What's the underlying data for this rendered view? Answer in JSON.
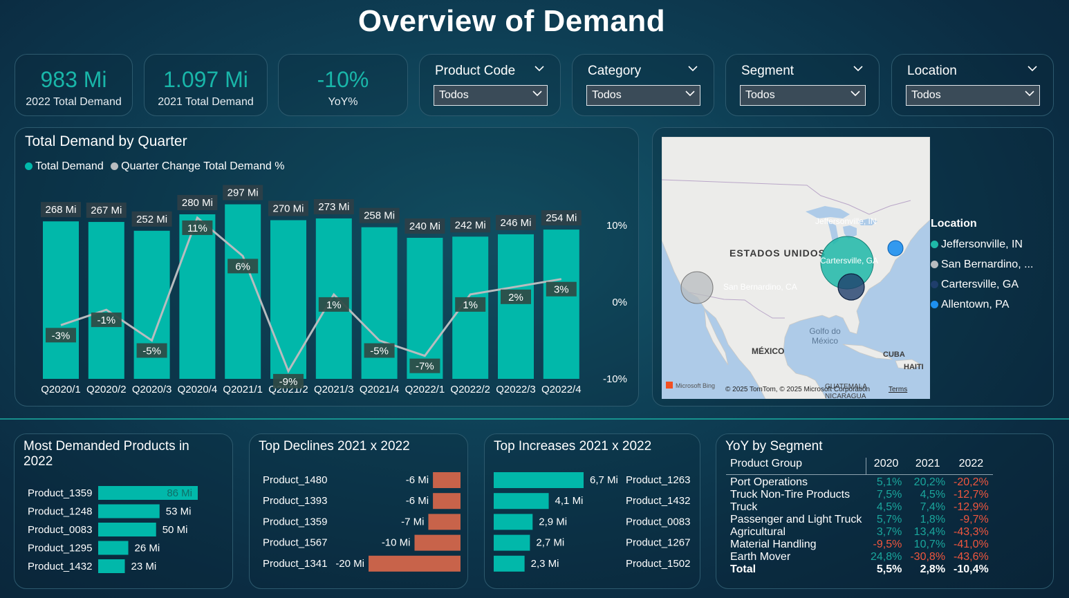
{
  "title": "Overview of Demand",
  "kpis": [
    {
      "value": "983 Mi",
      "label": "2022 Total Demand"
    },
    {
      "value": "1.097 Mi",
      "label": "2021 Total Demand"
    },
    {
      "value": "-10%",
      "label": "YoY%"
    }
  ],
  "slicers": [
    {
      "title": "Product Code",
      "value": "Todos"
    },
    {
      "title": "Category",
      "value": "Todos"
    },
    {
      "title": "Segment",
      "value": "Todos"
    },
    {
      "title": "Location",
      "value": "Todos"
    }
  ],
  "colors": {
    "teal": "#01b8aa",
    "line": "#b8bcbf",
    "decline": "#c8634a",
    "positive": "#1aa79d",
    "negative": "#f0563e"
  },
  "chart_data": [
    {
      "type": "bar",
      "title": "Total Demand by Quarter",
      "legend": [
        "Total Demand",
        "Quarter Change Total Demand %"
      ],
      "categories": [
        "Q2020/1",
        "Q2020/2",
        "Q2020/3",
        "Q2020/4",
        "Q2021/1",
        "Q2021/2",
        "Q2021/3",
        "Q2021/4",
        "Q2022/1",
        "Q2022/2",
        "Q2022/3",
        "Q2022/4"
      ],
      "series": [
        {
          "name": "Total Demand",
          "values": [
            268,
            267,
            252,
            280,
            297,
            270,
            273,
            258,
            240,
            242,
            246,
            254
          ],
          "labels": [
            "268 Mi",
            "267 Mi",
            "252 Mi",
            "280 Mi",
            "297 Mi",
            "270 Mi",
            "273 Mi",
            "258 Mi",
            "240 Mi",
            "242 Mi",
            "246 Mi",
            "254 Mi"
          ]
        },
        {
          "name": "Quarter Change Total Demand %",
          "values": [
            -3,
            -1,
            -5,
            11,
            6,
            -9,
            1,
            -5,
            -7,
            1,
            2,
            3
          ],
          "labels": [
            "-3%",
            "-1%",
            "-5%",
            "11%",
            "6%",
            "-9%",
            "1%",
            "-5%",
            "-7%",
            "1%",
            "2%",
            "3%"
          ]
        }
      ],
      "y2_ticks": [
        "10%",
        "0%",
        "-10%"
      ],
      "y2lim": [
        -10,
        10
      ]
    },
    {
      "type": "bar",
      "title": "Most Demanded Products in 2022",
      "categories": [
        "Product_1359",
        "Product_1248",
        "Product_0083",
        "Product_1295",
        "Product_1432"
      ],
      "values": [
        86,
        53,
        50,
        26,
        23
      ],
      "labels": [
        "86 Mi",
        "53 Mi",
        "50 Mi",
        "26 Mi",
        "23 Mi"
      ]
    },
    {
      "type": "bar",
      "title": "Top Declines 2021 x 2022",
      "categories": [
        "Product_1480",
        "Product_1393",
        "Product_1359",
        "Product_1567",
        "Product_1341"
      ],
      "values": [
        -6,
        -6,
        -7,
        -10,
        -20
      ],
      "labels": [
        "-6 Mi",
        "-6 Mi",
        "-7 Mi",
        "-10 Mi",
        "-20 Mi"
      ]
    },
    {
      "type": "bar",
      "title": "Top Increases 2021 x 2022",
      "categories": [
        "Product_1263",
        "Product_1432",
        "Product_0083",
        "Product_1267",
        "Product_1502"
      ],
      "values": [
        6.7,
        4.1,
        2.9,
        2.7,
        2.3
      ],
      "labels": [
        "6,7 Mi",
        "4,1 Mi",
        "2,9 Mi",
        "2,7 Mi",
        "2,3 Mi"
      ]
    }
  ],
  "map": {
    "labels": {
      "country": "ESTADOS UNIDOS",
      "mexico": "MÉXICO",
      "gulf_1": "Golfo do",
      "gulf_2": "México",
      "cuba": "CUBA",
      "haiti": "HAITI",
      "guatemala": "GUATEMALA",
      "nicaragua": "NICARAGUA"
    },
    "bubble_labels": {
      "jeff": "Jeffersonville, IN",
      "cart": "Cartersville, GA",
      "sanb": "San Bernardino, CA"
    },
    "bing": "Microsoft Bing",
    "copyright": "© 2025 TomTom, © 2025 Microsoft Corporation",
    "terms": "Terms",
    "legend_title": "Location",
    "legend": [
      {
        "name": "Jeffersonville, IN",
        "color": "#1fb9a8"
      },
      {
        "name": "San Bernardino, ...",
        "color": "#b8bcbf"
      },
      {
        "name": "Cartersville, GA",
        "color": "#1f3e6b"
      },
      {
        "name": "Allentown, PA",
        "color": "#1e90f0"
      }
    ]
  },
  "yoy": {
    "title": "YoY by Segment",
    "headers": [
      "Product Group",
      "2020",
      "2021",
      "2022"
    ],
    "rows": [
      {
        "name": "Port Operations",
        "v": [
          "5,1%",
          "20,2%",
          "-20,2%"
        ]
      },
      {
        "name": "Truck Non-Tire Products",
        "v": [
          "7,5%",
          "4,5%",
          "-12,7%"
        ]
      },
      {
        "name": "Truck",
        "v": [
          "4,5%",
          "7,4%",
          "-12,9%"
        ]
      },
      {
        "name": "Passenger and Light Truck",
        "v": [
          "5,7%",
          "1,8%",
          "-9,7%"
        ]
      },
      {
        "name": "Agricultural",
        "v": [
          "3,7%",
          "13,4%",
          "-43,3%"
        ]
      },
      {
        "name": "Material Handling",
        "v": [
          "-9,5%",
          "10,7%",
          "-41,0%"
        ]
      },
      {
        "name": "Earth Mover",
        "v": [
          "24,8%",
          "-30,8%",
          "-43,6%"
        ]
      }
    ],
    "total": {
      "name": "Total",
      "v": [
        "5,5%",
        "2,8%",
        "-10,4%"
      ]
    }
  }
}
